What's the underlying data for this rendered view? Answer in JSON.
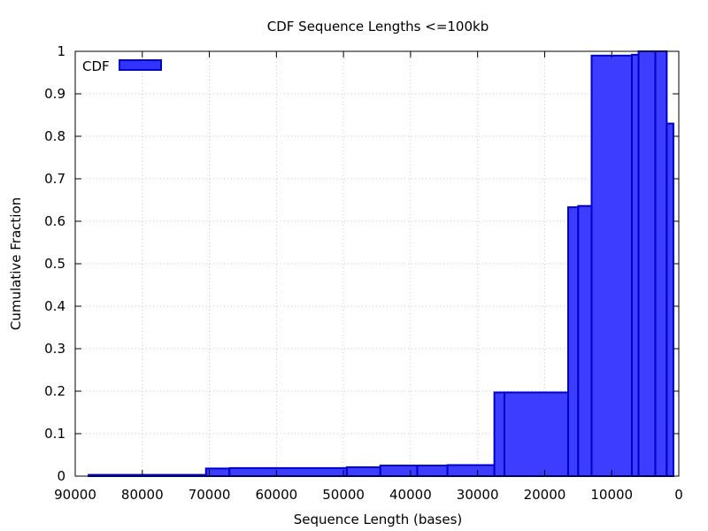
{
  "chart_data": {
    "type": "bar",
    "title": "CDF Sequence Lengths <=100kb",
    "xlabel": "Sequence Length (bases)",
    "ylabel": "Cumulative Fraction",
    "xlim": [
      90000,
      0
    ],
    "ylim": [
      0,
      1
    ],
    "x_ticks": [
      90000,
      80000,
      70000,
      60000,
      50000,
      40000,
      30000,
      20000,
      10000,
      0
    ],
    "y_ticks": [
      0,
      0.1,
      0.2,
      0.3,
      0.4,
      0.5,
      0.6,
      0.7,
      0.8,
      0.9,
      1
    ],
    "grid": true,
    "legend": {
      "position": "top-left",
      "entries": [
        "CDF"
      ]
    },
    "series": [
      {
        "name": "CDF",
        "color": "#3333ff",
        "edge_color": "#0000cc",
        "steps": [
          {
            "x_start": 88000,
            "x_end": 70500,
            "value": 0.003
          },
          {
            "x_start": 70500,
            "x_end": 67000,
            "value": 0.018
          },
          {
            "x_start": 67000,
            "x_end": 49500,
            "value": 0.019
          },
          {
            "x_start": 49500,
            "x_end": 44500,
            "value": 0.021
          },
          {
            "x_start": 44500,
            "x_end": 39000,
            "value": 0.025
          },
          {
            "x_start": 39000,
            "x_end": 34500,
            "value": 0.025
          },
          {
            "x_start": 34500,
            "x_end": 27500,
            "value": 0.026
          },
          {
            "x_start": 27500,
            "x_end": 26000,
            "value": 0.197
          },
          {
            "x_start": 26000,
            "x_end": 16500,
            "value": 0.197
          },
          {
            "x_start": 16500,
            "x_end": 15000,
            "value": 0.633
          },
          {
            "x_start": 15000,
            "x_end": 13000,
            "value": 0.636
          },
          {
            "x_start": 13000,
            "x_end": 7000,
            "value": 0.99
          },
          {
            "x_start": 7000,
            "x_end": 6000,
            "value": 0.992
          },
          {
            "x_start": 6000,
            "x_end": 3500,
            "value": 1.0
          },
          {
            "x_start": 3500,
            "x_end": 1800,
            "value": 1.0
          },
          {
            "x_start": 1800,
            "x_end": 800,
            "value": 0.83
          }
        ]
      }
    ]
  }
}
